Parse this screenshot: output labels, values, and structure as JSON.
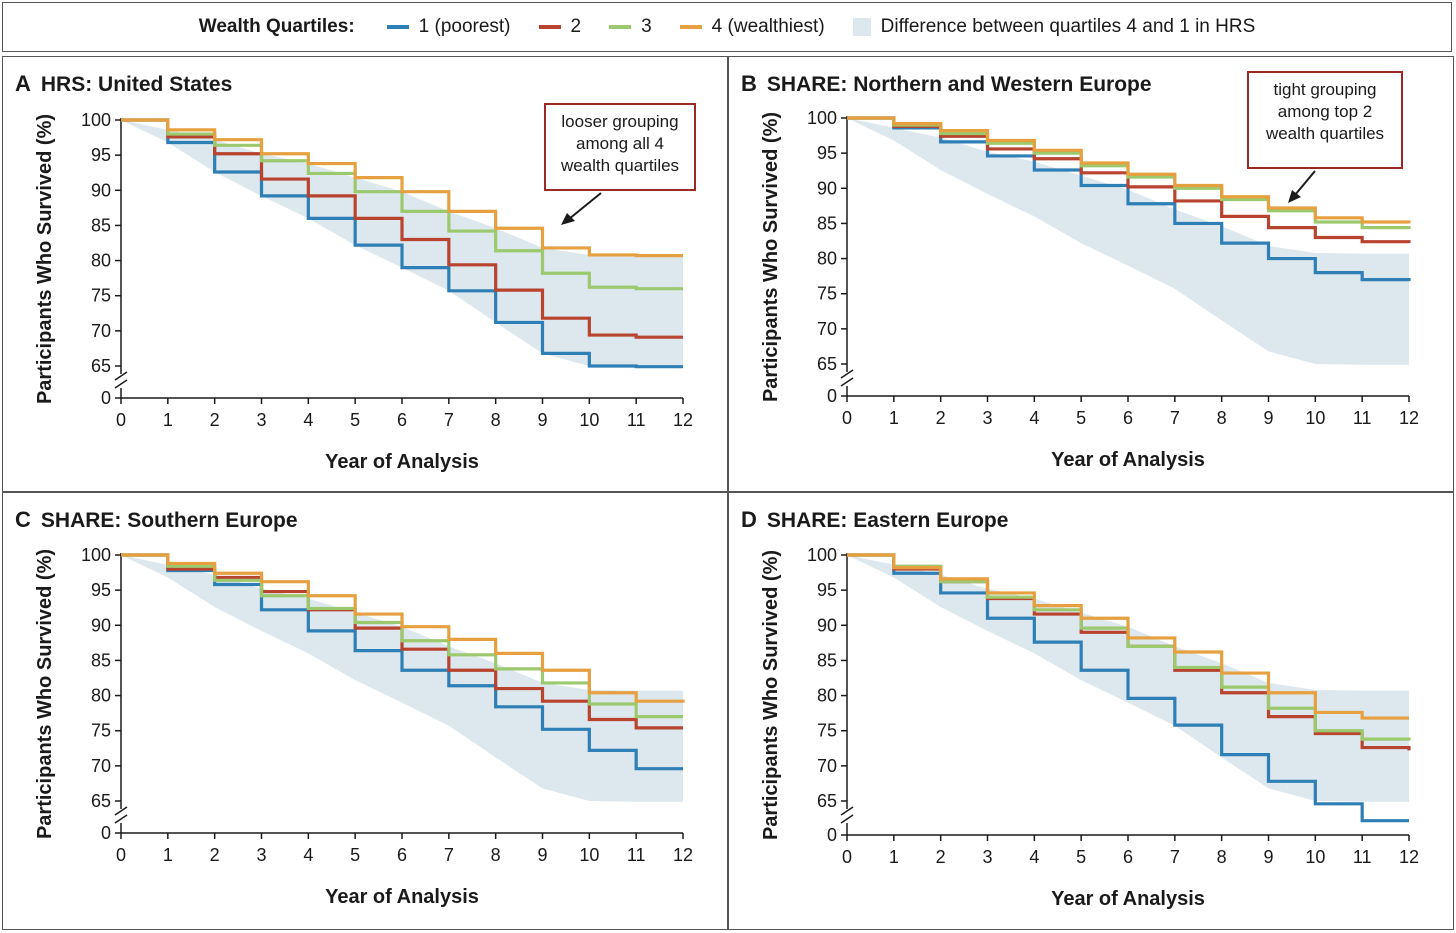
{
  "legend": {
    "title": "Wealth Quartiles:",
    "items": [
      {
        "label": "1 (poorest)",
        "color": "#2e7fb5"
      },
      {
        "label": "2",
        "color": "#b8432f"
      },
      {
        "label": "3",
        "color": "#9cc96e"
      },
      {
        "label": "4 (wealthiest)",
        "color": "#e6a040"
      }
    ],
    "band_label": "Difference between quartiles 4 and 1 in HRS",
    "band_color": "#dde7ee"
  },
  "chart_data": [
    {
      "type": "line",
      "letter": "A",
      "title": "HRS: United States",
      "xlabel": "Year of Analysis",
      "ylabel": "Participants Who Survived (%)",
      "xlim": [
        0,
        12
      ],
      "ylim": [
        65,
        100
      ],
      "x_ticks": [
        0,
        1,
        2,
        3,
        4,
        5,
        6,
        7,
        8,
        9,
        10,
        11,
        12
      ],
      "y_ticks": [
        65,
        70,
        75,
        80,
        85,
        90,
        95,
        100
      ],
      "y_zero_label": "0",
      "axis_break": true,
      "x": [
        0,
        1,
        2,
        3,
        4,
        5,
        6,
        7,
        8,
        9,
        10,
        11,
        12
      ],
      "series": [
        {
          "name": "1 (poorest)",
          "color": "#2e7fb5",
          "values": [
            100,
            96.8,
            92.6,
            89.2,
            86.0,
            82.2,
            79.0,
            75.7,
            71.2,
            66.8,
            65.0,
            64.9,
            64.9
          ]
        },
        {
          "name": "2",
          "color": "#b8432f",
          "values": [
            100,
            97.6,
            95.2,
            91.6,
            89.2,
            86.0,
            83.0,
            79.4,
            75.8,
            71.8,
            69.4,
            69.1,
            69.1
          ]
        },
        {
          "name": "3",
          "color": "#9cc96e",
          "values": [
            100,
            98.0,
            96.4,
            94.2,
            92.4,
            89.8,
            87.0,
            84.2,
            81.4,
            78.2,
            76.2,
            76.0,
            76.0
          ]
        },
        {
          "name": "4 (wealthiest)",
          "color": "#e6a040",
          "values": [
            100,
            98.6,
            97.2,
            95.2,
            93.8,
            91.8,
            89.8,
            87.0,
            84.6,
            81.8,
            80.8,
            80.7,
            80.7
          ]
        }
      ],
      "band": {
        "upper": [
          100,
          98.6,
          97.2,
          95.2,
          93.8,
          91.8,
          89.8,
          87.0,
          84.6,
          81.8,
          80.8,
          80.7,
          80.7
        ],
        "lower": [
          100,
          96.8,
          92.6,
          89.2,
          86.0,
          82.2,
          79.0,
          75.7,
          71.2,
          66.8,
          65.0,
          64.9,
          64.9
        ]
      },
      "annotation": {
        "text": "looser grouping among all 4 wealth quartiles"
      }
    },
    {
      "type": "line",
      "letter": "B",
      "title": "SHARE: Northern and Western Europe",
      "xlabel": "Year of Analysis",
      "ylabel": "Participants Who Survived (%)",
      "xlim": [
        0,
        12
      ],
      "ylim": [
        65,
        100
      ],
      "x_ticks": [
        0,
        1,
        2,
        3,
        4,
        5,
        6,
        7,
        8,
        9,
        10,
        11,
        12
      ],
      "y_ticks": [
        65,
        70,
        75,
        80,
        85,
        90,
        95,
        100
      ],
      "y_zero_label": "0",
      "axis_break": true,
      "x": [
        0,
        1,
        2,
        3,
        4,
        5,
        6,
        7,
        8,
        9,
        10,
        11,
        12
      ],
      "series": [
        {
          "name": "1 (poorest)",
          "color": "#2e7fb5",
          "values": [
            100,
            98.6,
            96.6,
            94.6,
            92.6,
            90.4,
            87.8,
            85.0,
            82.2,
            80.0,
            78.0,
            77.0,
            76.8
          ]
        },
        {
          "name": "2",
          "color": "#b8432f",
          "values": [
            100,
            98.8,
            97.4,
            95.6,
            94.2,
            92.2,
            90.2,
            88.2,
            86.0,
            84.4,
            83.0,
            82.4,
            82.2
          ]
        },
        {
          "name": "3",
          "color": "#9cc96e",
          "values": [
            100,
            99.0,
            97.8,
            96.4,
            95.0,
            93.2,
            91.6,
            90.0,
            88.4,
            86.8,
            85.2,
            84.4,
            84.2
          ]
        },
        {
          "name": "4 (wealthiest)",
          "color": "#e6a040",
          "values": [
            100,
            99.2,
            98.2,
            96.8,
            95.4,
            93.6,
            92.0,
            90.4,
            88.8,
            87.2,
            85.8,
            85.2,
            85.0
          ]
        }
      ],
      "band": {
        "upper": [
          100,
          98.6,
          97.2,
          95.2,
          93.8,
          91.8,
          89.8,
          87.0,
          84.6,
          81.8,
          80.8,
          80.7,
          80.7
        ],
        "lower": [
          100,
          96.8,
          92.6,
          89.2,
          86.0,
          82.2,
          79.0,
          75.7,
          71.2,
          66.8,
          65.0,
          64.9,
          64.9
        ]
      },
      "annotation": {
        "text": "tight grouping among top 2 wealth quartiles"
      }
    },
    {
      "type": "line",
      "letter": "C",
      "title": "SHARE: Southern Europe",
      "xlabel": "Year of Analysis",
      "ylabel": "Participants Who Survived (%)",
      "xlim": [
        0,
        12
      ],
      "ylim": [
        65,
        100
      ],
      "x_ticks": [
        0,
        1,
        2,
        3,
        4,
        5,
        6,
        7,
        8,
        9,
        10,
        11,
        12
      ],
      "y_ticks": [
        65,
        70,
        75,
        80,
        85,
        90,
        95,
        100
      ],
      "y_zero_label": "0",
      "axis_break": true,
      "x": [
        0,
        1,
        2,
        3,
        4,
        5,
        6,
        7,
        8,
        9,
        10,
        11,
        12
      ],
      "series": [
        {
          "name": "1 (poorest)",
          "color": "#2e7fb5",
          "values": [
            100,
            97.8,
            95.8,
            92.2,
            89.2,
            86.4,
            83.6,
            81.4,
            78.4,
            75.2,
            72.2,
            69.6,
            69.6
          ]
        },
        {
          "name": "2",
          "color": "#b8432f",
          "values": [
            100,
            98.0,
            96.8,
            94.8,
            92.2,
            89.6,
            86.6,
            83.6,
            81.0,
            79.2,
            76.6,
            75.4,
            75.4
          ]
        },
        {
          "name": "3",
          "color": "#9cc96e",
          "values": [
            100,
            98.4,
            96.4,
            94.2,
            92.4,
            90.4,
            87.8,
            85.8,
            83.8,
            81.8,
            78.8,
            77.0,
            77.0
          ]
        },
        {
          "name": "4 (wealthiest)",
          "color": "#e6a040",
          "values": [
            100,
            98.8,
            97.4,
            96.2,
            94.2,
            91.6,
            89.8,
            88.0,
            86.0,
            83.6,
            80.4,
            79.2,
            79.0
          ]
        }
      ],
      "band": {
        "upper": [
          100,
          98.6,
          97.2,
          95.2,
          93.8,
          91.8,
          89.8,
          87.0,
          84.6,
          81.8,
          80.8,
          80.7,
          80.7
        ],
        "lower": [
          100,
          96.8,
          92.6,
          89.2,
          86.0,
          82.2,
          79.0,
          75.7,
          71.2,
          66.8,
          65.0,
          64.9,
          64.9
        ]
      }
    },
    {
      "type": "line",
      "letter": "D",
      "title": "SHARE: Eastern Europe",
      "xlabel": "Year of Analysis",
      "ylabel": "Participants Who Survived (%)",
      "xlim": [
        0,
        12
      ],
      "ylim": [
        65,
        100
      ],
      "x_ticks": [
        0,
        1,
        2,
        3,
        4,
        5,
        6,
        7,
        8,
        9,
        10,
        11,
        12
      ],
      "y_ticks": [
        65,
        70,
        75,
        80,
        85,
        90,
        95,
        100
      ],
      "y_zero_label": "0",
      "axis_break": true,
      "x": [
        0,
        1,
        2,
        3,
        4,
        5,
        6,
        7,
        8,
        9,
        10,
        11,
        12
      ],
      "series": [
        {
          "name": "1 (poorest)",
          "color": "#2e7fb5",
          "values": [
            100,
            97.4,
            94.6,
            91.0,
            87.6,
            83.6,
            79.6,
            75.8,
            71.6,
            67.8,
            64.6,
            62.2,
            62.2
          ]
        },
        {
          "name": "2",
          "color": "#b8432f",
          "values": [
            100,
            98.0,
            96.2,
            93.8,
            91.6,
            89.0,
            87.0,
            83.6,
            80.4,
            77.0,
            74.6,
            72.6,
            72.2
          ]
        },
        {
          "name": "3",
          "color": "#9cc96e",
          "values": [
            100,
            98.4,
            96.2,
            94.0,
            92.2,
            89.6,
            87.0,
            84.0,
            81.2,
            78.2,
            75.0,
            73.8,
            73.6
          ]
        },
        {
          "name": "4 (wealthiest)",
          "color": "#e6a040",
          "values": [
            100,
            98.2,
            96.6,
            94.6,
            92.8,
            91.0,
            88.2,
            86.2,
            83.2,
            80.4,
            77.6,
            76.8,
            76.8
          ]
        }
      ],
      "band": {
        "upper": [
          100,
          98.6,
          97.2,
          95.2,
          93.8,
          91.8,
          89.8,
          87.0,
          84.6,
          81.8,
          80.8,
          80.7,
          80.7
        ],
        "lower": [
          100,
          96.8,
          92.6,
          89.2,
          86.0,
          82.2,
          79.0,
          75.7,
          71.2,
          66.8,
          65.0,
          64.9,
          64.9
        ]
      }
    }
  ]
}
